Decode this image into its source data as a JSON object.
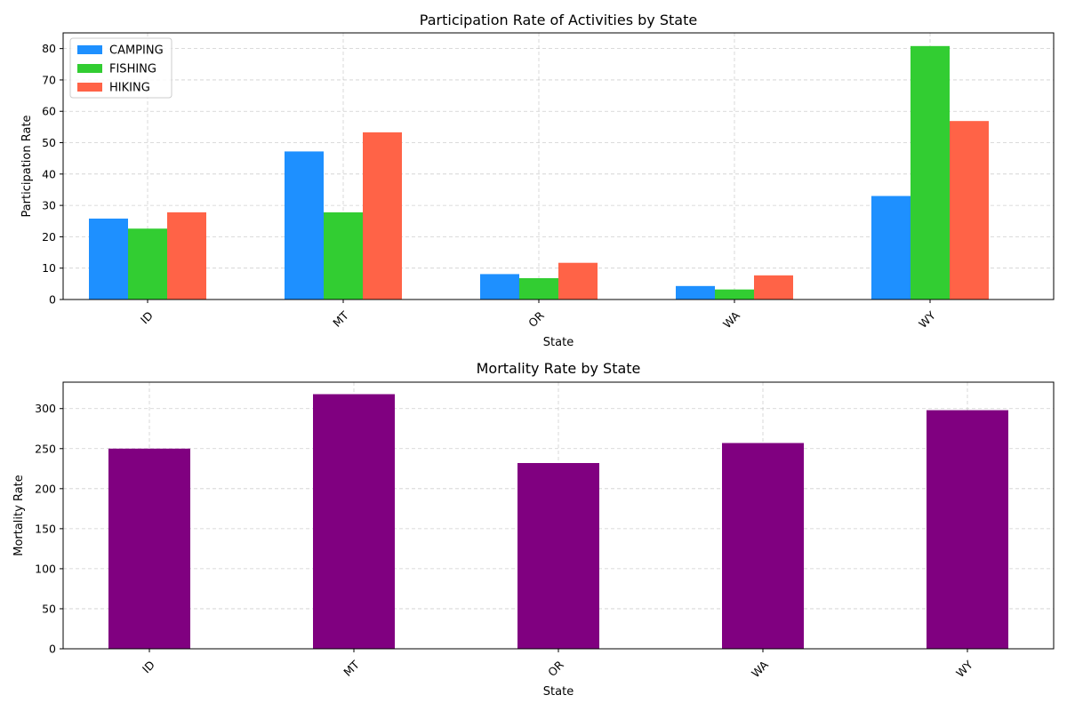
{
  "chart_data": [
    {
      "type": "bar",
      "title": "Participation Rate of Activities by State",
      "xlabel": "State",
      "ylabel": "Participation Rate",
      "categories": [
        "ID",
        "MT",
        "OR",
        "WA",
        "WY"
      ],
      "series": [
        {
          "name": "CAMPING",
          "values": [
            25.8,
            47.2,
            8.1,
            4.3,
            33.0
          ],
          "color": "#1E90FF"
        },
        {
          "name": "FISHING",
          "values": [
            22.6,
            27.8,
            6.8,
            3.2,
            80.8
          ],
          "color": "#32CD32"
        },
        {
          "name": "HIKING",
          "values": [
            27.8,
            53.3,
            11.7,
            7.7,
            56.9
          ],
          "color": "#FF6347"
        }
      ],
      "ylim": [
        0,
        85
      ],
      "yticks": [
        0,
        10,
        20,
        30,
        40,
        50,
        60,
        70,
        80
      ],
      "grid": true,
      "legend": "upper-left"
    },
    {
      "type": "bar",
      "title": "Mortality Rate by State",
      "xlabel": "State",
      "ylabel": "Mortality Rate",
      "categories": [
        "ID",
        "MT",
        "OR",
        "WA",
        "WY"
      ],
      "series": [
        {
          "values": [
            250,
            318,
            232,
            257,
            298
          ],
          "color": "#800080"
        }
      ],
      "ylim": [
        0,
        333
      ],
      "yticks": [
        0,
        50,
        100,
        150,
        200,
        250,
        300
      ],
      "grid": true
    }
  ]
}
